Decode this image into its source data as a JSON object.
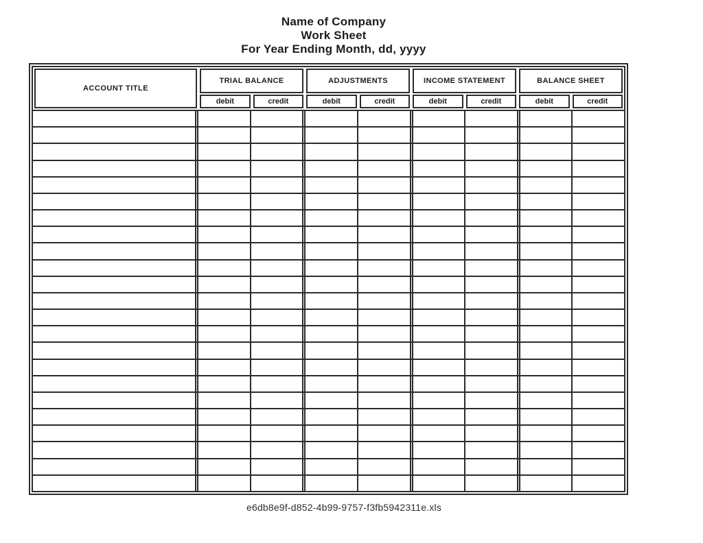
{
  "page": {
    "background": "#ffffff",
    "line_color": "#2b2b2b",
    "text_color": "#1c1c1c"
  },
  "title": {
    "company": "Name of Company",
    "sheet": "Work Sheet",
    "period": "For Year Ending Month, dd, yyyy"
  },
  "worksheet": {
    "account_column_header": "ACCOUNT TITLE",
    "sections": [
      {
        "label": "TRIAL BALANCE",
        "sub_columns": [
          "debit",
          "credit"
        ]
      },
      {
        "label": "ADJUSTMENTS",
        "sub_columns": [
          "debit",
          "credit"
        ]
      },
      {
        "label": "INCOME STATEMENT",
        "sub_columns": [
          "debit",
          "credit"
        ]
      },
      {
        "label": "BALANCE SHEET",
        "sub_columns": [
          "debit",
          "credit"
        ]
      }
    ],
    "body_row_count": 23
  },
  "footer": {
    "filename": "e6db8e9f-d852-4b99-9757-f3fb5942311e.xls"
  }
}
